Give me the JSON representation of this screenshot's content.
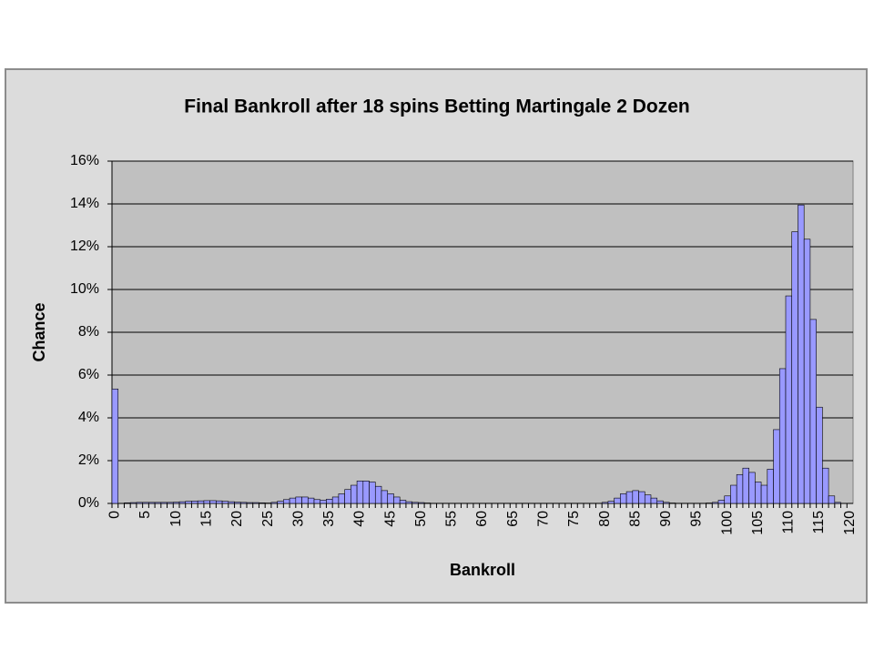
{
  "chart_data": {
    "type": "bar",
    "title": "Final Bankroll after 18 spins Betting Martingale 2 Dozen",
    "x_label": "Bankroll",
    "y_label": "Chance",
    "categories": [
      "0",
      null,
      null,
      null,
      null,
      "5",
      null,
      null,
      null,
      null,
      "10",
      null,
      null,
      null,
      null,
      "15",
      null,
      null,
      null,
      null,
      "20",
      null,
      null,
      null,
      null,
      "25",
      null,
      null,
      null,
      null,
      "30",
      null,
      null,
      null,
      null,
      "35",
      null,
      null,
      null,
      null,
      "40",
      null,
      null,
      null,
      null,
      "45",
      null,
      null,
      null,
      null,
      "50",
      null,
      null,
      null,
      null,
      "55",
      null,
      null,
      null,
      null,
      "60",
      null,
      null,
      null,
      null,
      "65",
      null,
      null,
      null,
      null,
      "70",
      null,
      null,
      null,
      null,
      "75",
      null,
      null,
      null,
      null,
      "80",
      null,
      null,
      null,
      null,
      "85",
      null,
      null,
      null,
      null,
      "90",
      null,
      null,
      null,
      null,
      "95",
      null,
      null,
      null,
      null,
      "100",
      null,
      null,
      null,
      null,
      "105",
      null,
      null,
      null,
      null,
      "110",
      null,
      null,
      null,
      null,
      "115",
      null,
      null,
      null,
      null,
      "120"
    ],
    "values": [
      5.35,
      0,
      0.03,
      0.04,
      0.05,
      0.05,
      0.05,
      0.05,
      0.05,
      0.05,
      0.06,
      0.08,
      0.1,
      0.11,
      0.12,
      0.13,
      0.13,
      0.12,
      0.1,
      0.08,
      0.06,
      0.05,
      0.04,
      0.04,
      0.03,
      0.02,
      0.05,
      0.1,
      0.18,
      0.25,
      0.3,
      0.3,
      0.25,
      0.18,
      0.15,
      0.2,
      0.3,
      0.45,
      0.65,
      0.85,
      1.05,
      1.05,
      1.0,
      0.8,
      0.6,
      0.45,
      0.3,
      0.15,
      0.08,
      0.05,
      0.04,
      0.02,
      0.01,
      0.01,
      0.01,
      0.01,
      0.01,
      0.01,
      0.01,
      0.01,
      0.01,
      0.01,
      0.01,
      0.01,
      0.01,
      0.01,
      0.01,
      0.01,
      0.01,
      0.01,
      0.01,
      0.01,
      0.01,
      0.01,
      0.01,
      0.01,
      0.01,
      0.01,
      0.01,
      0.01,
      0.05,
      0.1,
      0.25,
      0.45,
      0.55,
      0.6,
      0.55,
      0.4,
      0.25,
      0.12,
      0.05,
      0.02,
      0.01,
      0.01,
      0.01,
      0.01,
      0.01,
      0.02,
      0.05,
      0.15,
      0.35,
      0.85,
      1.35,
      1.65,
      1.45,
      1.0,
      0.85,
      1.6,
      3.45,
      6.3,
      9.7,
      12.7,
      13.95,
      12.35,
      8.6,
      4.5,
      1.65,
      0.35,
      0.05,
      0,
      0
    ],
    "color": "#9999ff",
    "ylim": [
      0,
      16
    ],
    "yticks": [
      {
        "value": 0,
        "label": "0%"
      },
      {
        "value": 2,
        "label": "2%"
      },
      {
        "value": 4,
        "label": "4%"
      },
      {
        "value": 6,
        "label": "6%"
      },
      {
        "value": 8,
        "label": "8%"
      },
      {
        "value": 10,
        "label": "10%"
      },
      {
        "value": 12,
        "label": "12%"
      },
      {
        "value": 14,
        "label": "14%"
      },
      {
        "value": 16,
        "label": "16%"
      }
    ],
    "grid": true
  }
}
